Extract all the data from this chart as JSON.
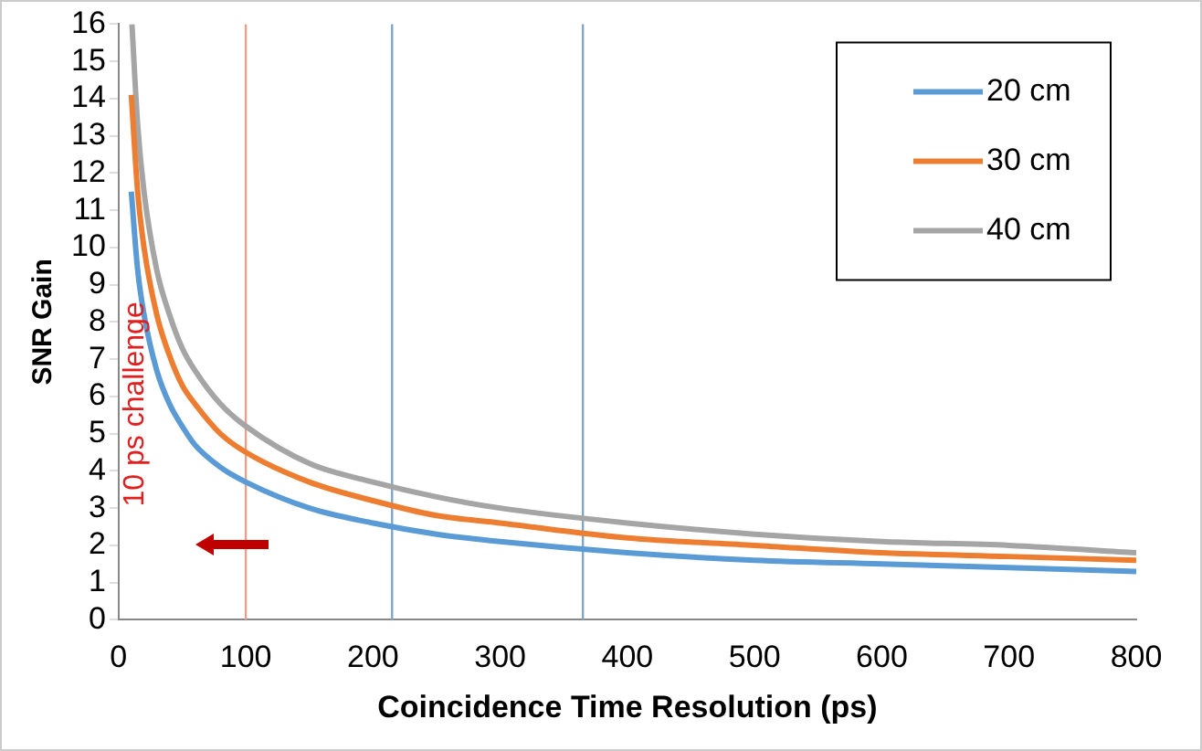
{
  "chart_data": {
    "type": "line",
    "xlabel": "Coincidence Time Resolution (ps)",
    "ylabel": "SNR Gain",
    "xlim": [
      0,
      800
    ],
    "xticks": [
      0,
      100,
      200,
      300,
      400,
      500,
      600,
      700,
      800
    ],
    "ylim": [
      0,
      16
    ],
    "yticks": [
      0,
      1,
      2,
      3,
      4,
      5,
      6,
      7,
      8,
      9,
      10,
      11,
      12,
      13,
      14,
      15,
      16
    ],
    "grid": false,
    "legend": "top right",
    "marker": "none",
    "line_style": "solid",
    "series": [
      {
        "name": "20 cm",
        "color": "#5b9bd5",
        "x": [
          10,
          15,
          20,
          30,
          40,
          50,
          60,
          80,
          100,
          150,
          200,
          250,
          300,
          400,
          500,
          600,
          700,
          800
        ],
        "values": [
          11.5,
          9.4,
          8.2,
          6.7,
          5.8,
          5.2,
          4.7,
          4.1,
          3.7,
          3.0,
          2.6,
          2.3,
          2.1,
          1.8,
          1.6,
          1.5,
          1.4,
          1.3
        ]
      },
      {
        "name": "30 cm",
        "color": "#ed7d31",
        "x": [
          10,
          15,
          20,
          30,
          40,
          50,
          60,
          80,
          100,
          150,
          200,
          250,
          300,
          400,
          500,
          600,
          700,
          800
        ],
        "values": [
          14.1,
          11.5,
          10.0,
          8.2,
          7.1,
          6.3,
          5.8,
          5.0,
          4.5,
          3.7,
          3.2,
          2.8,
          2.6,
          2.2,
          2.0,
          1.8,
          1.7,
          1.6
        ]
      },
      {
        "name": "40 cm",
        "color": "#a5a5a5",
        "x": [
          10.5,
          15,
          20,
          30,
          40,
          50,
          60,
          80,
          100,
          150,
          200,
          250,
          300,
          400,
          500,
          600,
          700,
          800
        ],
        "values": [
          16,
          13.3,
          11.5,
          9.4,
          8.2,
          7.3,
          6.7,
          5.8,
          5.2,
          4.2,
          3.7,
          3.3,
          3.0,
          2.6,
          2.3,
          2.1,
          2.0,
          1.8
        ]
      }
    ],
    "ref_lines": [
      {
        "axis": "x",
        "value": 100,
        "color": "#e3a08c"
      },
      {
        "axis": "x",
        "value": 215,
        "color": "#7fa6c8"
      },
      {
        "axis": "x",
        "value": 365,
        "color": "#7fa6c8"
      }
    ],
    "annotations": [
      "10 ps challenge"
    ]
  }
}
